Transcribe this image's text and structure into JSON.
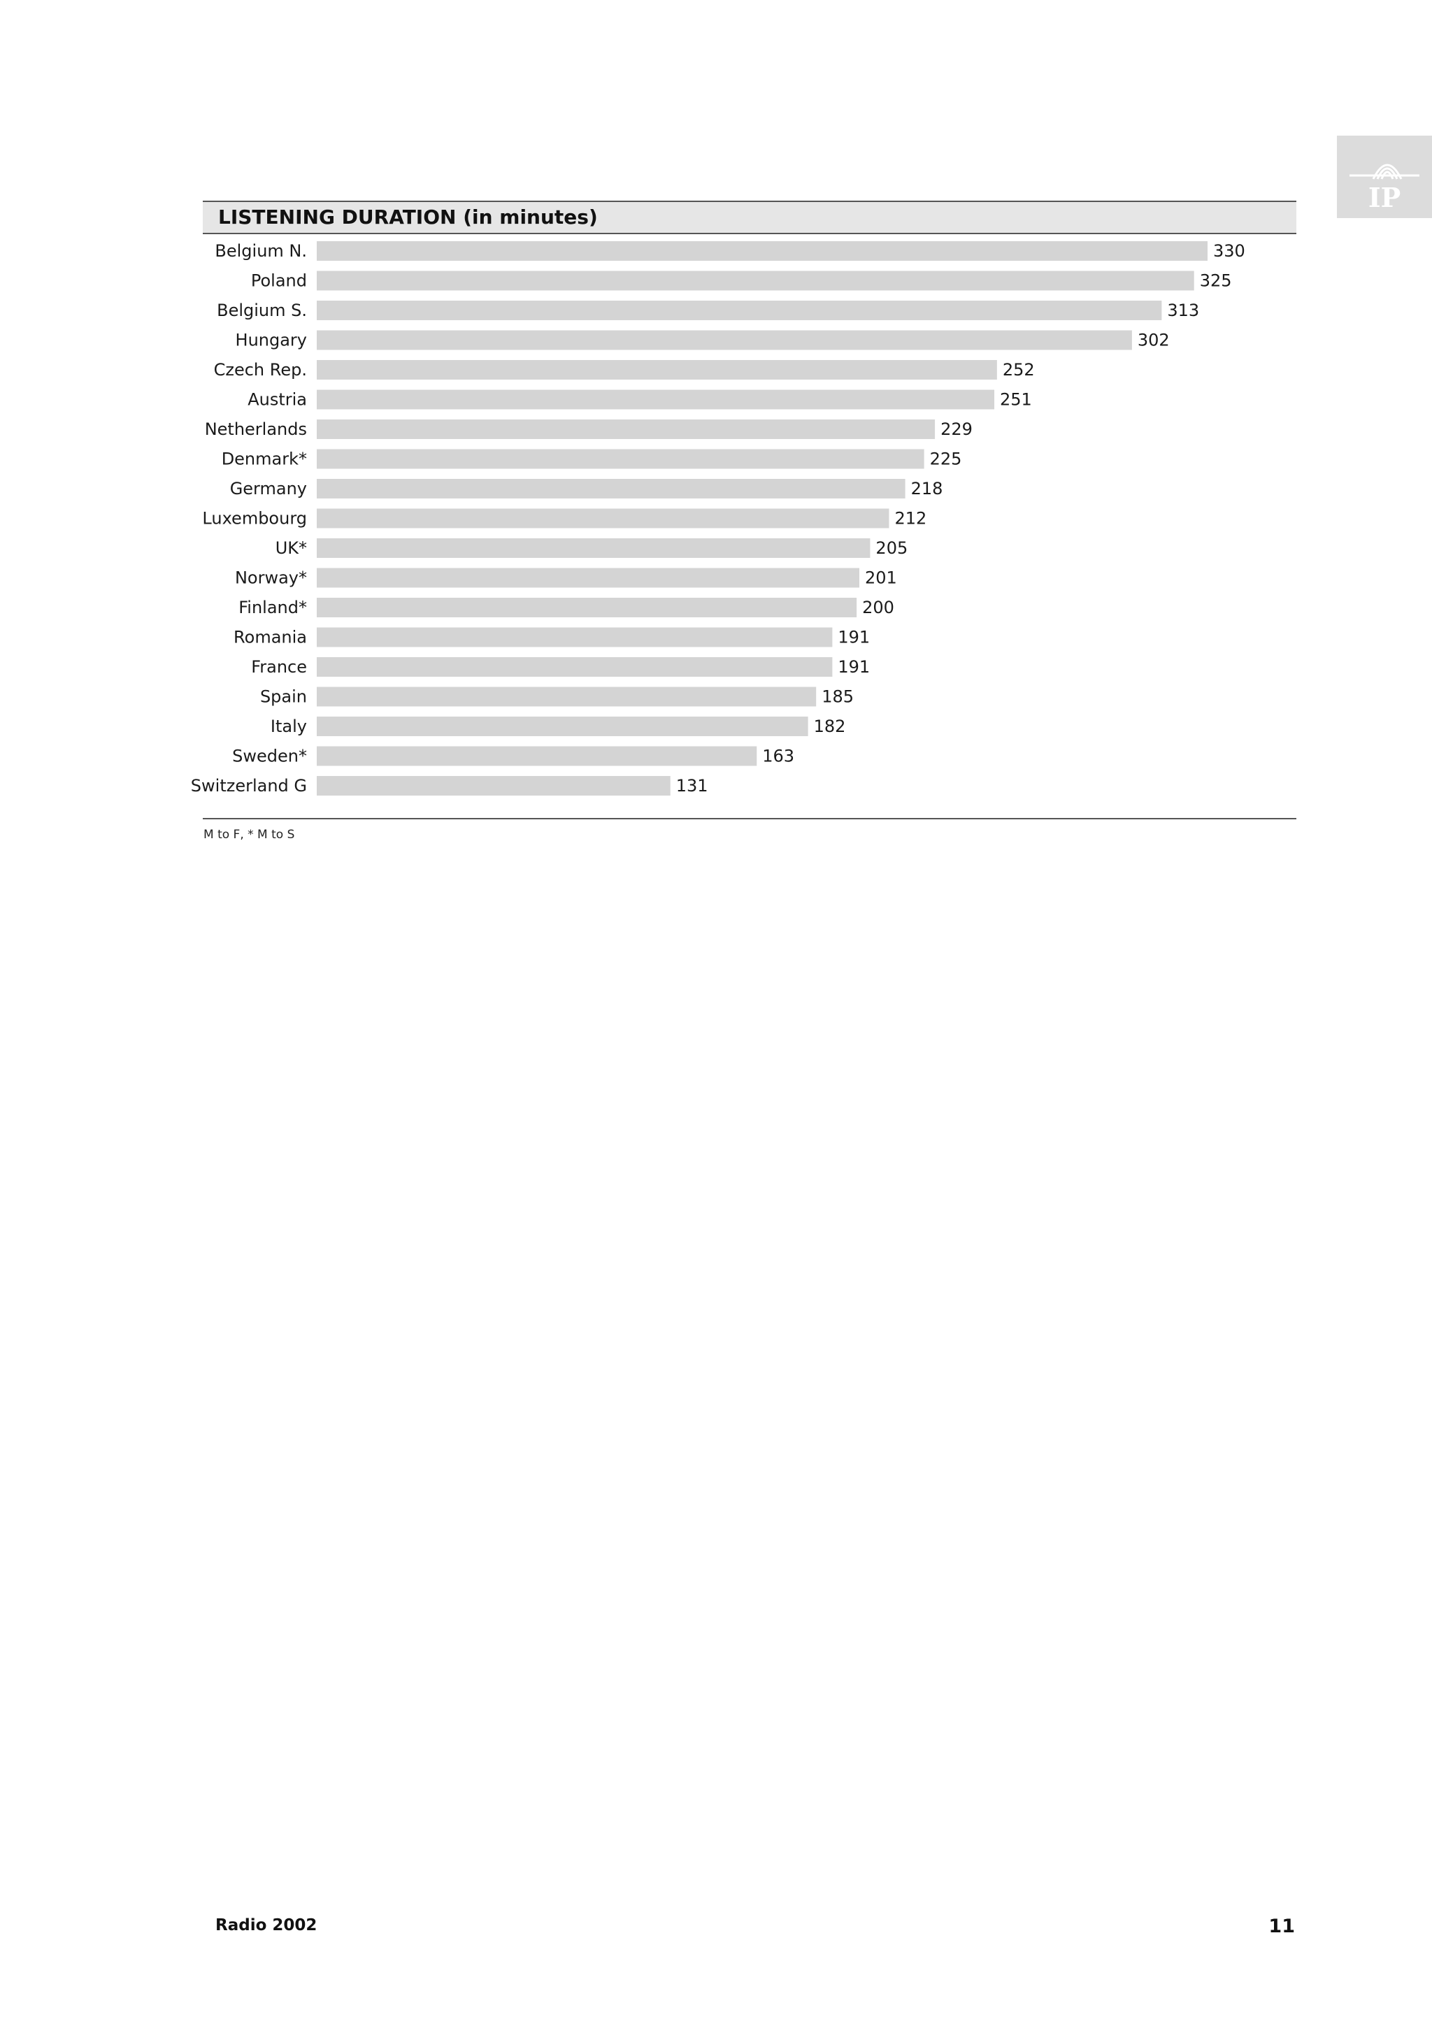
{
  "logo": {
    "text": "IP",
    "icon": "ip-logo-icon",
    "background": "#dcdcdc"
  },
  "chart_data": {
    "type": "bar",
    "orientation": "horizontal",
    "title": "LISTENING DURATION (in minutes)",
    "categories": [
      "Belgium N.",
      "Poland",
      "Belgium S.",
      "Hungary",
      "Czech Rep.",
      "Austria",
      "Netherlands",
      "Denmark*",
      "Germany",
      "Luxembourg",
      "UK*",
      "Norway*",
      "Finland*",
      "Romania",
      "France",
      "Spain",
      "Italy",
      "Sweden*",
      "Switzerland G"
    ],
    "values": [
      330,
      325,
      313,
      302,
      252,
      251,
      229,
      225,
      218,
      212,
      205,
      201,
      200,
      191,
      191,
      185,
      182,
      163,
      131
    ],
    "xlabel": "",
    "ylabel": "",
    "xlim": [
      0,
      330
    ],
    "grid": false,
    "legend": "none",
    "bar_color": "#d4d4d4",
    "header_color": "#e6e6e6"
  },
  "footnote": "M to F, * M to S",
  "footer": {
    "publication": "Radio 2002",
    "page_number": "11"
  }
}
